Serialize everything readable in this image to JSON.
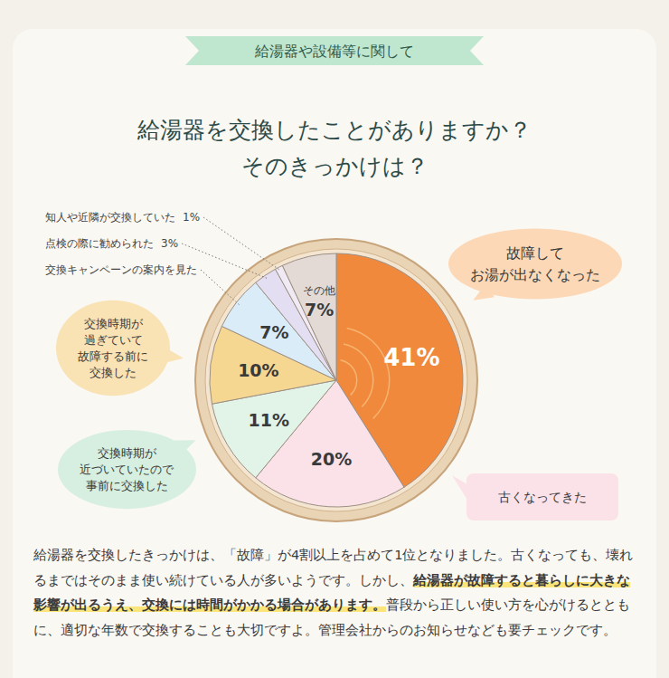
{
  "header": "給湯器や設備等に関して",
  "chart_data": {
    "type": "pie",
    "title": "給湯器を交換したことがありますか？",
    "subtitle": "そのきっかけは？",
    "categories": [
      "故障して\nお湯が出なくなった",
      "古くなってきた",
      "交換時期が\n近づいていたので\n事前に交換した",
      "交換時期が\n過ぎていて\n故障する前に\n交換した",
      "交換キャンペーンの案内を見た",
      "点検の際に勧められた",
      "知人や近隣が交換していた",
      "その他"
    ],
    "values": [
      41,
      20,
      11,
      10,
      7,
      3,
      1,
      7
    ],
    "value_labels": [
      "41%",
      "20%",
      "11%",
      "10%",
      "7%",
      "3%",
      "1%",
      "7%"
    ],
    "colors": [
      "#f0893c",
      "#fbe2e8",
      "#e2f3e8",
      "#f6d792",
      "#d9ecf8",
      "#e3def2",
      "#efeaf3",
      "#e3dad5"
    ],
    "data_labels": true
  },
  "body": [
    {
      "text": "給湯器を交換したきっかけは、「故障」が4割以上を占めて1位となりました。古くなっても、壊れるまではそのまま使い続けている人が多いようです。しかし、",
      "highlight": false
    },
    {
      "text": "給湯器が故障すると暮らしに大きな影響が出るうえ、交換には時間がかかる場合があります。",
      "highlight": true
    },
    {
      "text": "普段から正しい使い方を心がけるとともに、適切な年数で交換することも大切ですよ。管理会社からのお知らせなども要チェックです。",
      "highlight": false
    }
  ]
}
